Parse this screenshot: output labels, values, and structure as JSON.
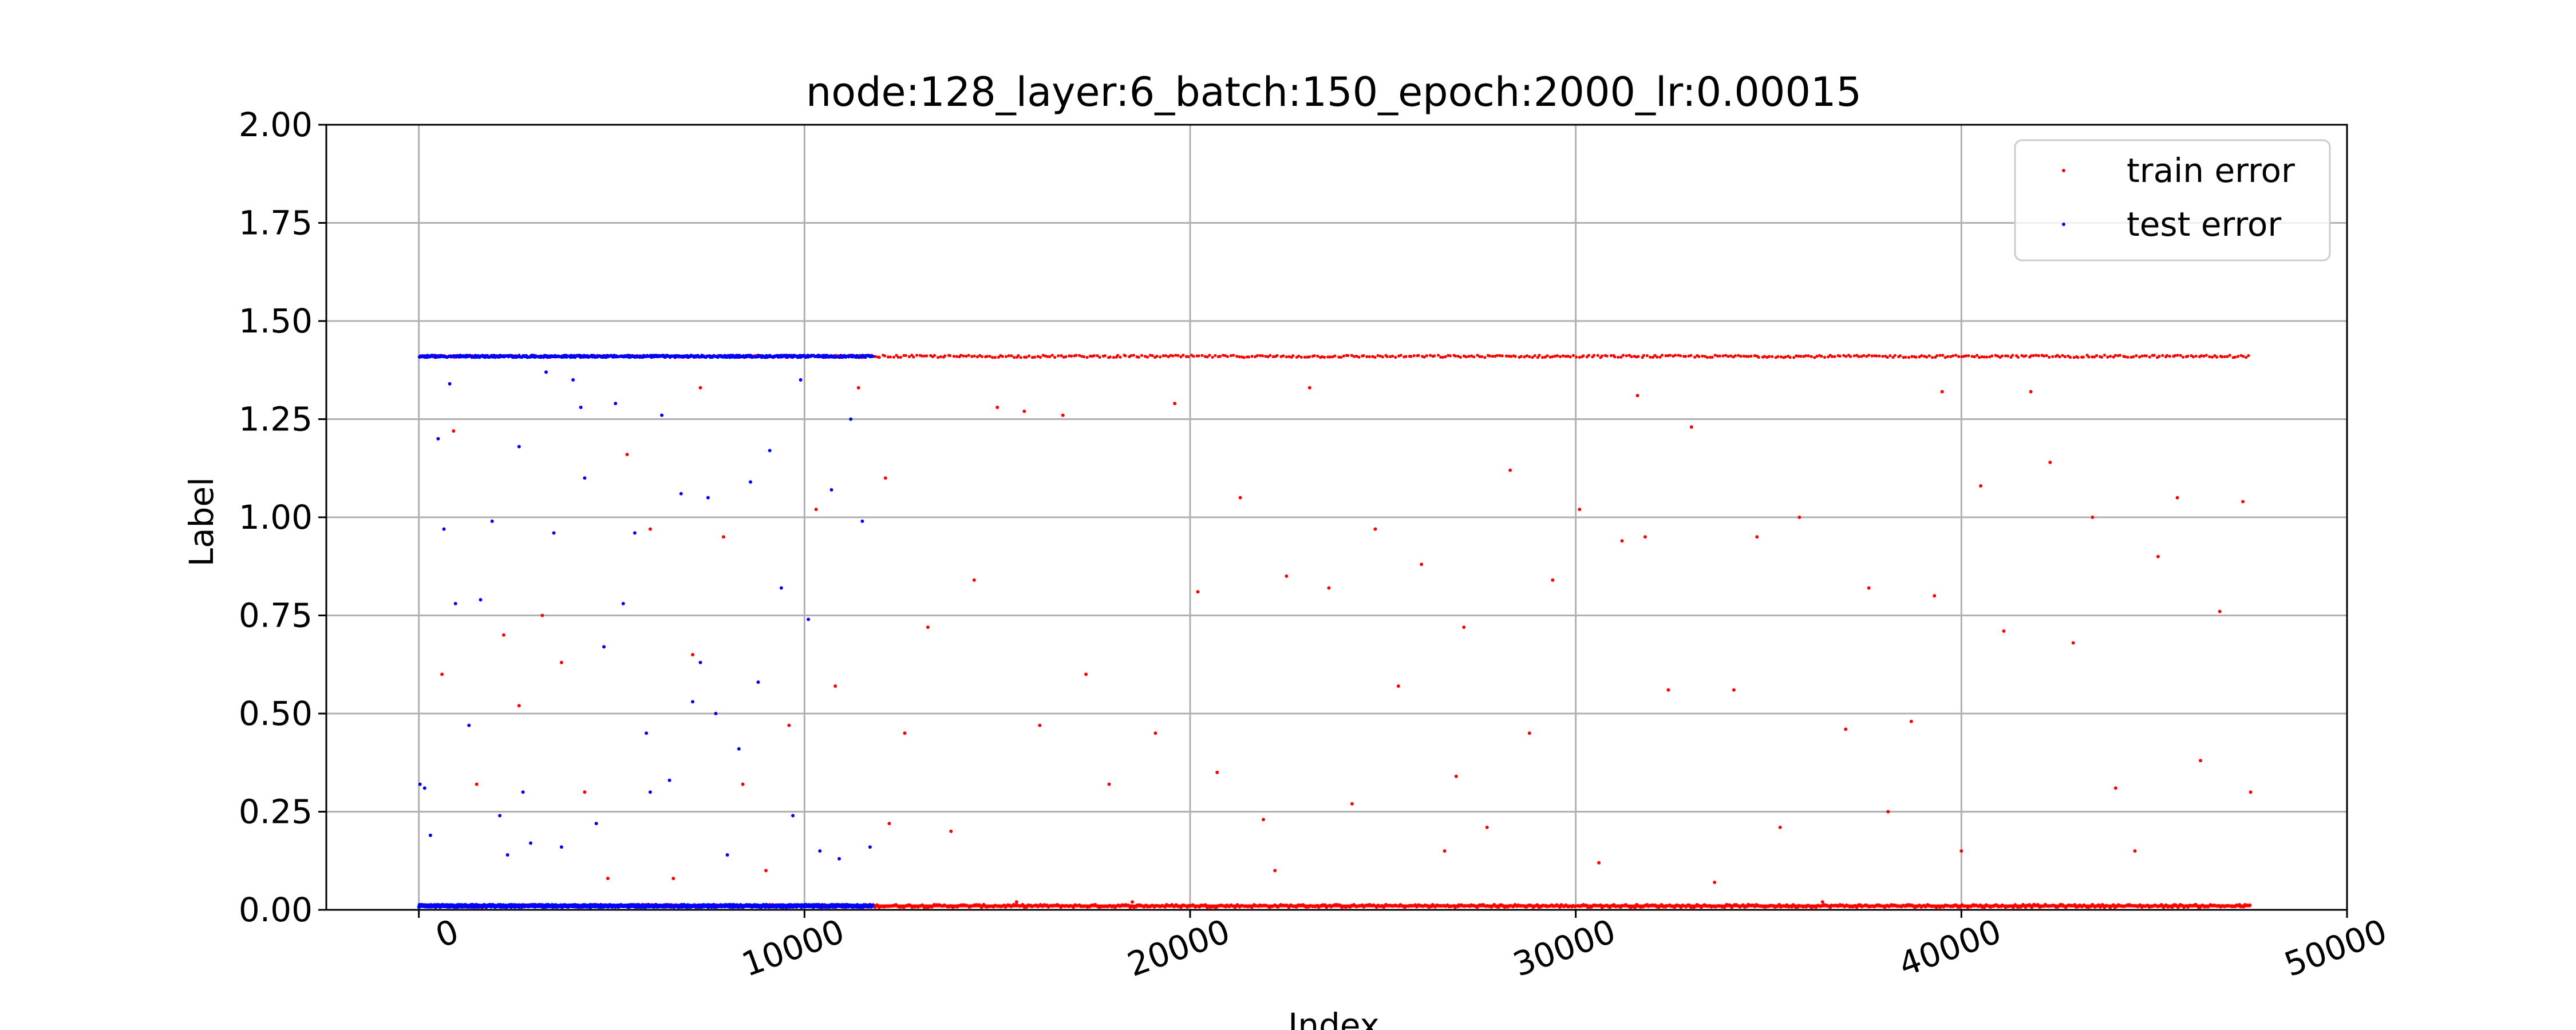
{
  "chart_data": {
    "type": "scatter",
    "title": "node:128_layer:6_batch:150_epoch:2000_lr:0.00015",
    "xlabel": "Index",
    "ylabel": "Label",
    "xlim": [
      -2400,
      50000
    ],
    "ylim": [
      0,
      2
    ],
    "xticks": [
      0,
      10000,
      20000,
      30000,
      40000,
      50000
    ],
    "xtick_labels": [
      "0",
      "10000",
      "20000",
      "30000",
      "40000",
      "50000"
    ],
    "xtick_rotation_deg": 20,
    "yticks": [
      0,
      0.25,
      0.5,
      0.75,
      1.0,
      1.25,
      1.5,
      1.75,
      2.0
    ],
    "ytick_labels": [
      "0.00",
      "0.25",
      "0.50",
      "0.75",
      "1.00",
      "1.25",
      "1.50",
      "1.75",
      "2.00"
    ],
    "grid": true,
    "legend_position": "top-right",
    "series": [
      {
        "name": "train error",
        "color": "#ff0000",
        "x_range": [
          0,
          47500
        ],
        "dominant_levels": [
          0.01,
          1.41
        ],
        "note_points": [
          [
            600,
            0.6
          ],
          [
            900,
            1.22
          ],
          [
            1500,
            0.32
          ],
          [
            2200,
            0.7
          ],
          [
            2600,
            0.52
          ],
          [
            3200,
            0.75
          ],
          [
            3700,
            0.63
          ],
          [
            4300,
            0.3
          ],
          [
            4900,
            0.08
          ],
          [
            5400,
            1.16
          ],
          [
            6000,
            0.97
          ],
          [
            6600,
            0.08
          ],
          [
            7100,
            0.65
          ],
          [
            7900,
            0.95
          ],
          [
            8400,
            0.32
          ],
          [
            9000,
            0.1
          ],
          [
            9600,
            0.47
          ],
          [
            10300,
            1.02
          ],
          [
            10800,
            0.57
          ],
          [
            11400,
            1.33
          ],
          [
            12100,
            1.1
          ],
          [
            12600,
            0.45
          ],
          [
            13200,
            0.72
          ],
          [
            13800,
            0.2
          ],
          [
            14400,
            0.84
          ],
          [
            15000,
            1.28
          ],
          [
            15500,
            0.02
          ],
          [
            16100,
            0.47
          ],
          [
            16700,
            1.26
          ],
          [
            17300,
            0.6
          ],
          [
            17900,
            0.32
          ],
          [
            18500,
            0.02
          ],
          [
            19100,
            0.45
          ],
          [
            19600,
            1.29
          ],
          [
            20200,
            0.81
          ],
          [
            20700,
            0.35
          ],
          [
            21300,
            1.05
          ],
          [
            21900,
            0.23
          ],
          [
            22500,
            0.85
          ],
          [
            23100,
            1.33
          ],
          [
            23600,
            0.82
          ],
          [
            24200,
            0.27
          ],
          [
            24800,
            0.97
          ],
          [
            25400,
            0.57
          ],
          [
            26000,
            0.88
          ],
          [
            26600,
            0.15
          ],
          [
            27100,
            0.72
          ],
          [
            27700,
            0.21
          ],
          [
            28300,
            1.12
          ],
          [
            28800,
            0.45
          ],
          [
            29400,
            0.84
          ],
          [
            30100,
            1.02
          ],
          [
            30600,
            0.12
          ],
          [
            31200,
            0.94
          ],
          [
            31800,
            0.95
          ],
          [
            32400,
            0.56
          ],
          [
            33000,
            1.23
          ],
          [
            33600,
            0.07
          ],
          [
            34100,
            0.56
          ],
          [
            34700,
            0.95
          ],
          [
            35300,
            0.21
          ],
          [
            35800,
            1.0
          ],
          [
            36400,
            0.02
          ],
          [
            37000,
            0.46
          ],
          [
            37600,
            0.82
          ],
          [
            38100,
            0.25
          ],
          [
            38700,
            0.48
          ],
          [
            39300,
            0.8
          ],
          [
            40000,
            0.15
          ],
          [
            40500,
            1.08
          ],
          [
            41100,
            0.71
          ],
          [
            41800,
            1.32
          ],
          [
            42300,
            1.14
          ],
          [
            42900,
            0.68
          ],
          [
            43400,
            1.0
          ],
          [
            44000,
            0.31
          ],
          [
            44500,
            0.15
          ],
          [
            45100,
            0.9
          ],
          [
            45600,
            1.05
          ],
          [
            46200,
            0.38
          ],
          [
            46700,
            0.76
          ],
          [
            47300,
            1.04
          ],
          [
            47500,
            0.3
          ],
          [
            39500,
            1.32
          ],
          [
            15700,
            1.27
          ],
          [
            7300,
            1.33
          ],
          [
            26900,
            0.34
          ],
          [
            31600,
            1.31
          ],
          [
            12200,
            0.22
          ],
          [
            22200,
            0.1
          ]
        ]
      },
      {
        "name": "test error",
        "color": "#0000ff",
        "x_range": [
          0,
          11800
        ],
        "dominant_levels": [
          0.01,
          1.41
        ],
        "note_points": [
          [
            30,
            0.32
          ],
          [
            150,
            0.31
          ],
          [
            300,
            0.19
          ],
          [
            500,
            1.2
          ],
          [
            650,
            0.97
          ],
          [
            800,
            1.34
          ],
          [
            950,
            0.78
          ],
          [
            1300,
            0.47
          ],
          [
            1600,
            0.79
          ],
          [
            1900,
            0.99
          ],
          [
            2100,
            0.24
          ],
          [
            2300,
            0.14
          ],
          [
            2600,
            1.18
          ],
          [
            2900,
            0.17
          ],
          [
            3300,
            1.37
          ],
          [
            3500,
            0.96
          ],
          [
            3700,
            0.16
          ],
          [
            4000,
            1.35
          ],
          [
            4200,
            1.28
          ],
          [
            4300,
            1.1
          ],
          [
            4600,
            0.22
          ],
          [
            4800,
            0.67
          ],
          [
            5100,
            1.29
          ],
          [
            5300,
            0.78
          ],
          [
            5600,
            0.96
          ],
          [
            6000,
            0.3
          ],
          [
            6300,
            1.26
          ],
          [
            6500,
            0.33
          ],
          [
            6800,
            1.06
          ],
          [
            7100,
            0.53
          ],
          [
            7300,
            0.63
          ],
          [
            7500,
            1.05
          ],
          [
            7700,
            0.5
          ],
          [
            8000,
            0.14
          ],
          [
            8300,
            0.41
          ],
          [
            8600,
            1.09
          ],
          [
            8800,
            0.58
          ],
          [
            9100,
            1.17
          ],
          [
            9400,
            0.82
          ],
          [
            9700,
            0.24
          ],
          [
            10100,
            0.74
          ],
          [
            10400,
            0.15
          ],
          [
            10700,
            1.07
          ],
          [
            10900,
            0.13
          ],
          [
            11200,
            1.25
          ],
          [
            11500,
            0.99
          ],
          [
            11700,
            0.16
          ],
          [
            5900,
            0.45
          ],
          [
            2700,
            0.3
          ],
          [
            9900,
            1.35
          ]
        ]
      }
    ]
  }
}
